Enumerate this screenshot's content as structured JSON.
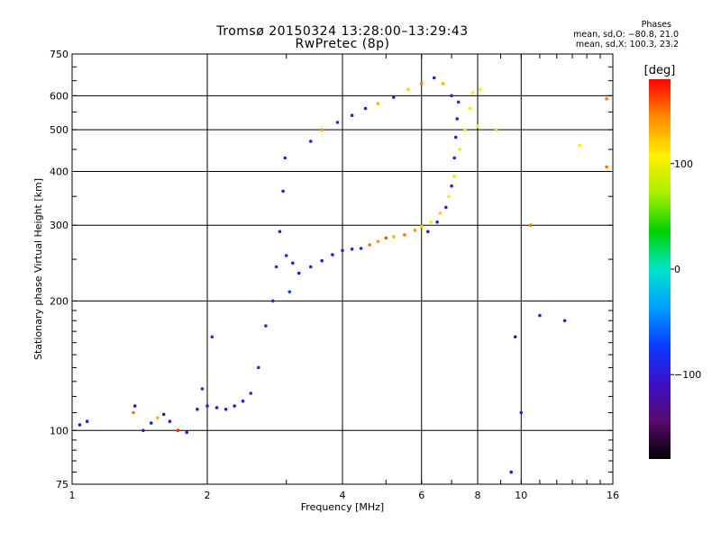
{
  "header": {
    "title_line1": "Tromsø 20150324 13:28:00–13:29:43",
    "title_line2": "RwPretec (8p)",
    "phase_heading": "Phases",
    "phase_o": "mean, sd,O: −80.8, 21.0",
    "phase_x": "mean, sd,X: 100.3, 23.2"
  },
  "colorbar": {
    "unit": "[deg]",
    "ticks": [
      "100",
      "0",
      "−100"
    ],
    "tick_values": [
      100,
      0,
      -100
    ],
    "range": [
      -180,
      180
    ]
  },
  "chart_data": {
    "type": "scatter",
    "xlabel": "Frequency [MHz]",
    "ylabel": "Stationary phase Virtual Height [km]",
    "xscale": "log",
    "yscale": "log",
    "xlim": [
      1,
      16
    ],
    "ylim": [
      75,
      750
    ],
    "xticks": [
      1,
      2,
      4,
      6,
      8,
      10,
      16
    ],
    "xtick_labels": [
      "1",
      "2",
      "4",
      "6",
      "8",
      "10",
      "16"
    ],
    "yticks": [
      75,
      100,
      200,
      300,
      400,
      500,
      600,
      750
    ],
    "ytick_labels": [
      "75",
      "100",
      "200",
      "300",
      "400",
      "500",
      "600",
      "750"
    ],
    "grid": true,
    "series": [
      {
        "color_by": "phase",
        "points": [
          [
            1.04,
            103,
            -100
          ],
          [
            1.08,
            105,
            -95
          ],
          [
            1.37,
            110,
            150
          ],
          [
            1.38,
            114,
            -120
          ],
          [
            1.44,
            100,
            -110
          ],
          [
            1.5,
            104,
            -95
          ],
          [
            1.55,
            107,
            130
          ],
          [
            1.6,
            109,
            -125
          ],
          [
            1.65,
            105,
            -100
          ],
          [
            1.72,
            100,
            170
          ],
          [
            1.8,
            99,
            -105
          ],
          [
            1.9,
            112,
            -100
          ],
          [
            1.95,
            125,
            -90
          ],
          [
            2.0,
            114,
            -100
          ],
          [
            2.05,
            165,
            -80
          ],
          [
            2.1,
            113,
            -110
          ],
          [
            2.2,
            112,
            -105
          ],
          [
            2.3,
            114,
            -95
          ],
          [
            2.4,
            117,
            -100
          ],
          [
            2.5,
            122,
            -90
          ],
          [
            2.6,
            140,
            -85
          ],
          [
            2.7,
            175,
            -75
          ],
          [
            2.8,
            200,
            -90
          ],
          [
            2.85,
            240,
            -80
          ],
          [
            2.9,
            290,
            -95
          ],
          [
            2.95,
            360,
            -100
          ],
          [
            2.98,
            430,
            -90
          ],
          [
            3.0,
            255,
            -85
          ],
          [
            3.05,
            210,
            -70
          ],
          [
            3.1,
            245,
            -100
          ],
          [
            3.2,
            232,
            -110
          ],
          [
            3.4,
            240,
            -100
          ],
          [
            3.6,
            248,
            -105
          ],
          [
            3.8,
            256,
            -100
          ],
          [
            4.0,
            262,
            -95
          ],
          [
            4.2,
            264,
            -90
          ],
          [
            4.4,
            265,
            -100
          ],
          [
            4.6,
            270,
            150
          ],
          [
            4.8,
            275,
            140
          ],
          [
            5.0,
            280,
            160
          ],
          [
            5.2,
            282,
            130
          ],
          [
            5.5,
            285,
            150
          ],
          [
            5.8,
            292,
            140
          ],
          [
            6.0,
            298,
            120
          ],
          [
            6.3,
            305,
            110
          ],
          [
            6.6,
            320,
            120
          ],
          [
            6.9,
            350,
            110
          ],
          [
            7.1,
            390,
            90
          ],
          [
            7.3,
            450,
            100
          ],
          [
            7.5,
            500,
            95
          ],
          [
            7.7,
            560,
            100
          ],
          [
            7.8,
            610,
            110
          ],
          [
            6.2,
            290,
            -100
          ],
          [
            6.5,
            305,
            -95
          ],
          [
            6.8,
            330,
            -105
          ],
          [
            7.0,
            370,
            -90
          ],
          [
            7.1,
            430,
            -100
          ],
          [
            7.15,
            480,
            -95
          ],
          [
            7.2,
            530,
            -100
          ],
          [
            7.25,
            580,
            -90
          ],
          [
            3.4,
            470,
            -100
          ],
          [
            3.6,
            500,
            140
          ],
          [
            3.9,
            520,
            -90
          ],
          [
            4.2,
            540,
            -95
          ],
          [
            4.5,
            560,
            -100
          ],
          [
            4.8,
            575,
            130
          ],
          [
            5.2,
            595,
            -95
          ],
          [
            5.6,
            620,
            120
          ],
          [
            6.0,
            640,
            150
          ],
          [
            6.4,
            660,
            -100
          ],
          [
            6.7,
            640,
            130
          ],
          [
            7.0,
            600,
            -95
          ],
          [
            8.8,
            500,
            90
          ],
          [
            8.0,
            510,
            100
          ],
          [
            8.1,
            620,
            110
          ],
          [
            10.5,
            300,
            150
          ],
          [
            13.5,
            460,
            110
          ],
          [
            15.5,
            410,
            150
          ],
          [
            15.5,
            590,
            150
          ],
          [
            9.5,
            80,
            -100
          ],
          [
            9.7,
            165,
            -110
          ],
          [
            10.0,
            110,
            -95
          ],
          [
            11.0,
            185,
            -90
          ],
          [
            12.5,
            180,
            -100
          ]
        ]
      }
    ]
  }
}
